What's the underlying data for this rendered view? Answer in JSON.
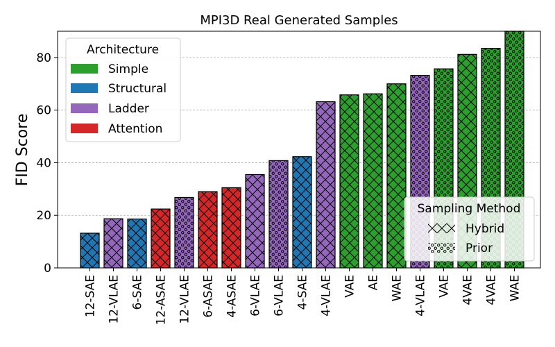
{
  "chart_data": {
    "type": "bar",
    "title": "MPI3D Real Generated Samples",
    "xlabel": "",
    "ylabel": "FID Score",
    "ylim": [
      0,
      90
    ],
    "yticks": [
      0,
      20,
      40,
      60,
      80
    ],
    "grid": "y-dashed",
    "categories": [
      "12-SAE",
      "12-VLAE",
      "6-SAE",
      "12-ASAE",
      "12-VLAE",
      "6-ASAE",
      "4-ASAE",
      "6-VLAE",
      "6-VLAE",
      "4-SAE",
      "4-VLAE",
      "VAE",
      "AE",
      "WAE",
      "4-VLAE",
      "VAE",
      "4VAE",
      "4VAE",
      "WAE"
    ],
    "values": [
      13.2,
      18.7,
      18.6,
      22.4,
      26.8,
      29.0,
      30.5,
      35.5,
      40.8,
      42.3,
      63.2,
      65.8,
      66.2,
      70.0,
      73.2,
      75.7,
      81.2,
      83.5,
      90.0
    ],
    "architecture": [
      "Structural",
      "Ladder",
      "Structural",
      "Attention",
      "Ladder",
      "Attention",
      "Attention",
      "Ladder",
      "Ladder",
      "Structural",
      "Ladder",
      "Simple",
      "Simple",
      "Simple",
      "Ladder",
      "Simple",
      "Simple",
      "Simple",
      "Simple"
    ],
    "sampling": [
      "Hybrid",
      "Hybrid",
      "Hybrid",
      "Hybrid",
      "Prior",
      "Hybrid",
      "Hybrid",
      "Hybrid",
      "Prior",
      "Hybrid",
      "Hybrid",
      "Hybrid",
      "Hybrid",
      "Hybrid",
      "Prior",
      "Prior",
      "Hybrid",
      "Prior",
      "Prior"
    ],
    "architecture_colors": {
      "Simple": "#2ca02c",
      "Structural": "#1f77b4",
      "Ladder": "#9467bd",
      "Attention": "#d62728"
    },
    "legend_architecture": {
      "title": "Architecture",
      "placement": "top-left",
      "entries": [
        "Simple",
        "Structural",
        "Ladder",
        "Attention"
      ]
    },
    "legend_sampling": {
      "title": "Sampling Method",
      "placement": "bottom-right",
      "entries": [
        "Hybrid",
        "Prior"
      ]
    }
  }
}
